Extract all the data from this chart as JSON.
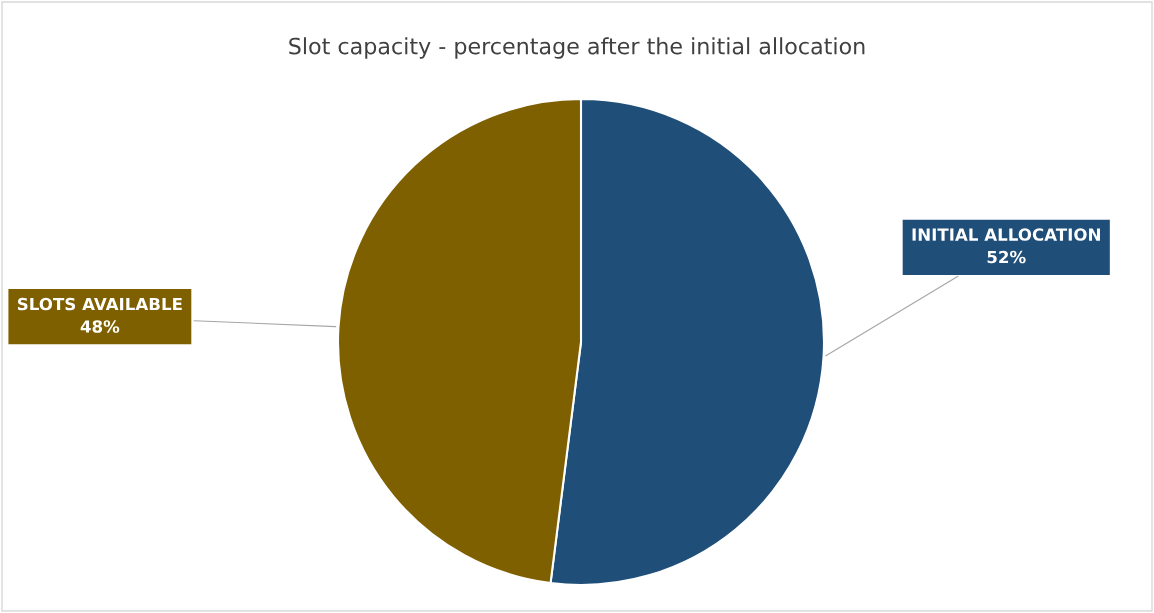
{
  "chart_data": {
    "type": "pie",
    "title": "Slot capacity - percentage after the initial allocation",
    "categories": [
      "INITIAL ALLOCATION",
      "SLOTS AVAILABLE"
    ],
    "values": [
      52,
      48
    ],
    "colors": [
      "#1f4e79",
      "#7f6000"
    ],
    "value_labels": [
      "52%",
      "48%"
    ],
    "legend": false
  }
}
